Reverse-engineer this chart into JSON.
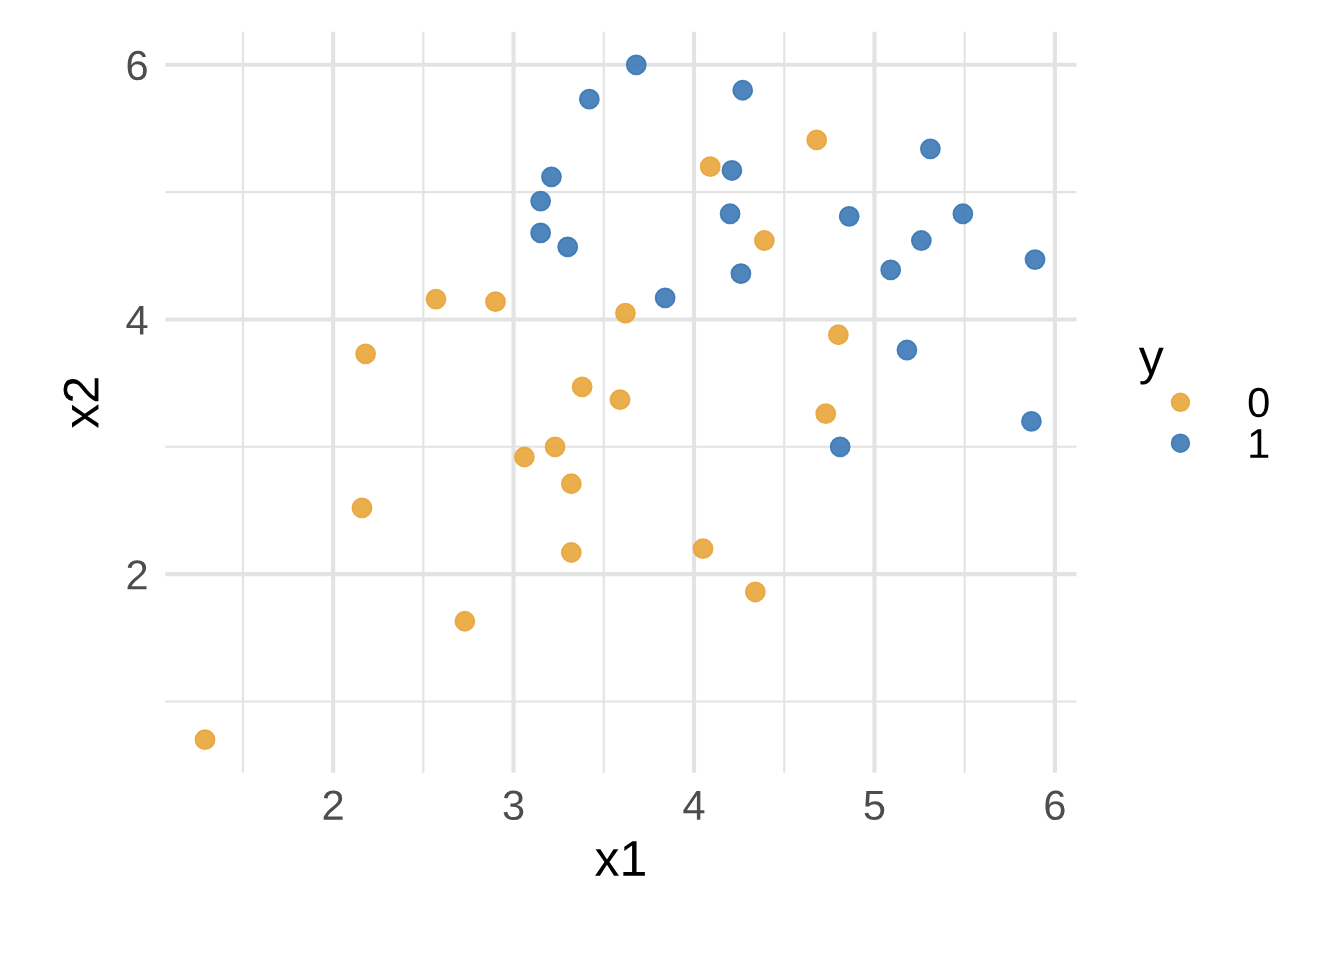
{
  "chart_data": {
    "type": "scatter",
    "xlabel": "x1",
    "ylabel": "x2",
    "legend_title": "y",
    "legend": "right",
    "grid": true,
    "marker": "circle",
    "xlim": [
      1.07,
      6.12
    ],
    "ylim": [
      0.44,
      6.26
    ],
    "xticks": [
      {
        "value": 1.5,
        "label": null
      },
      2,
      {
        "value": 2.5,
        "label": null
      },
      3,
      {
        "value": 3.5,
        "label": null
      },
      4,
      {
        "value": 4.5,
        "label": null
      },
      5,
      {
        "value": 5.5,
        "label": null
      },
      6
    ],
    "yticks": [
      {
        "value": 1,
        "label": null
      },
      2,
      {
        "value": 3,
        "label": null
      },
      4,
      {
        "value": 5,
        "label": null
      },
      6
    ],
    "series": [
      {
        "name": "0",
        "color": "#e9a53a",
        "x": [
          1.29,
          2.18,
          2.16,
          2.57,
          2.9,
          2.73,
          3.06,
          3.23,
          3.32,
          3.32,
          3.38,
          3.59,
          3.62,
          4.05,
          4.34,
          4.09,
          4.39,
          4.68,
          4.8,
          4.73
        ],
        "values": [
          0.7,
          3.73,
          2.52,
          4.16,
          4.14,
          1.63,
          2.92,
          3.0,
          2.71,
          2.17,
          3.47,
          3.37,
          4.05,
          2.2,
          1.86,
          5.2,
          4.62,
          5.41,
          3.88,
          3.26
        ]
      },
      {
        "name": "1",
        "color": "#3a78b5",
        "x": [
          3.68,
          3.42,
          4.27,
          3.21,
          3.15,
          3.15,
          3.3,
          3.84,
          4.21,
          4.2,
          4.26,
          4.86,
          5.31,
          5.49,
          5.26,
          5.09,
          5.89,
          5.18,
          5.87,
          4.81
        ],
        "values": [
          6.0,
          5.73,
          5.8,
          5.12,
          4.93,
          4.68,
          4.57,
          4.17,
          5.17,
          4.83,
          4.36,
          4.81,
          5.34,
          4.83,
          4.62,
          4.39,
          4.47,
          3.76,
          3.2,
          3.0
        ]
      }
    ]
  }
}
